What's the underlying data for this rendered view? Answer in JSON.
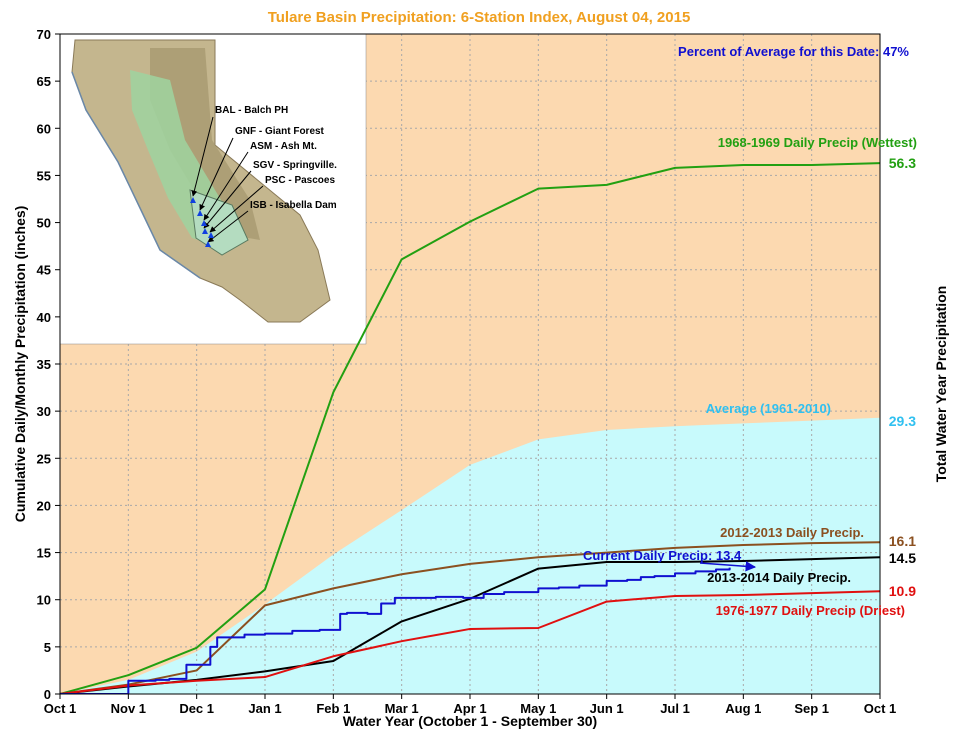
{
  "chart_data": {
    "type": "line",
    "title": "Tulare Basin Precipitation: 6-Station Index, August 04, 2015",
    "annotation": "Percent of Average for this Date: 47%",
    "xlabel": "Water Year (October 1 - September 30)",
    "ylabel": "Cumulative Daily/Monthly Precipitation (inches)",
    "ylabel_right": "Total Water Year Precipitation",
    "x_ticks": [
      "Oct 1",
      "Nov 1",
      "Dec 1",
      "Jan 1",
      "Feb 1",
      "Mar 1",
      "Apr 1",
      "May 1",
      "Jun 1",
      "Jul 1",
      "Aug 1",
      "Sep 1",
      "Oct 1"
    ],
    "y_ticks": [
      "0",
      "5",
      "10",
      "15",
      "20",
      "25",
      "30",
      "35",
      "40",
      "45",
      "50",
      "55",
      "60",
      "65",
      "70"
    ],
    "ylim": [
      0,
      70
    ],
    "grid": true,
    "colors": {
      "title": "#f0a020",
      "annotation": "#1010d0",
      "background": "#fcd9b0",
      "average_fill": "#c8fafc"
    },
    "series": [
      {
        "name": "1968-1969 Daily Precip (Wettest)",
        "color": "#22a012",
        "end_label": "56.3",
        "x": [
          0,
          1,
          2,
          3,
          4,
          5,
          6,
          7,
          8,
          9,
          10,
          11,
          12
        ],
        "values": [
          0,
          2.0,
          4.9,
          11.1,
          32.0,
          46.1,
          50.1,
          53.6,
          54.0,
          55.8,
          56.1,
          56.1,
          56.3
        ]
      },
      {
        "name": "Average (1961-2010)",
        "color": "#30c0f0",
        "end_label": "29.3",
        "area": true,
        "x": [
          0,
          1,
          2,
          3,
          4,
          5,
          6,
          7,
          8,
          9,
          10,
          11,
          12
        ],
        "values": [
          0,
          1.5,
          4.5,
          9.5,
          14.8,
          19.5,
          24.3,
          27.0,
          28.0,
          28.4,
          28.7,
          29.0,
          29.3
        ]
      },
      {
        "name": "2012-2013 Daily Precip.",
        "color": "#8b5020",
        "end_label": "16.1",
        "x": [
          0,
          1,
          2,
          3,
          4,
          5,
          6,
          7,
          8,
          9,
          10,
          11,
          12
        ],
        "values": [
          0,
          1.0,
          2.5,
          9.4,
          11.2,
          12.7,
          13.8,
          14.5,
          15.0,
          15.5,
          15.8,
          16.0,
          16.1
        ]
      },
      {
        "name": "2013-2014 Daily Precip.",
        "color": "#000000",
        "end_label": "14.5",
        "x": [
          0,
          1,
          2,
          3,
          4,
          5,
          6,
          7,
          8,
          9,
          10,
          11,
          12
        ],
        "values": [
          0,
          0.8,
          1.5,
          2.4,
          3.5,
          7.7,
          10.1,
          13.3,
          14.0,
          14.0,
          14.1,
          14.3,
          14.5
        ]
      },
      {
        "name": "1976-1977 Daily Precip (Driest)",
        "color": "#e01010",
        "end_label": "10.9",
        "x": [
          0,
          1,
          2,
          3,
          4,
          5,
          6,
          7,
          8,
          9,
          10,
          11,
          12
        ],
        "values": [
          0,
          0.9,
          1.4,
          1.8,
          4.0,
          5.6,
          6.9,
          7.0,
          9.8,
          10.4,
          10.5,
          10.7,
          10.9
        ]
      },
      {
        "name": "Current Daily Precip: 13.4",
        "color": "#1010d0",
        "step": true,
        "x": [
          0,
          0.97,
          1.0,
          1.4,
          1.5,
          1.6,
          1.75,
          1.85,
          2.2,
          2.3,
          2.7,
          3.0,
          3.4,
          3.8,
          4.1,
          4.2,
          4.5,
          4.7,
          4.9,
          5.5,
          5.9,
          6.2,
          6.5,
          7.0,
          7.3,
          7.6,
          8.0,
          8.3,
          8.5,
          8.7,
          9.0,
          9.3,
          9.6,
          9.8
        ],
        "values": [
          0,
          0,
          1.4,
          1.5,
          1.5,
          1.6,
          1.6,
          3.1,
          5.0,
          6.0,
          6.3,
          6.4,
          6.7,
          6.8,
          8.5,
          8.6,
          8.5,
          9.6,
          10.2,
          10.3,
          10.2,
          10.6,
          10.8,
          11.2,
          11.3,
          11.5,
          12.0,
          12.1,
          12.4,
          12.5,
          12.8,
          13.0,
          13.2,
          13.4
        ]
      }
    ]
  },
  "map": {
    "stations": [
      "BAL - Balch PH",
      "GNF - Giant Forest",
      "ASM - Ash Mt.",
      "SGV - Springville.",
      "PSC - Pascoes",
      "ISB - Isabella Dam"
    ]
  }
}
